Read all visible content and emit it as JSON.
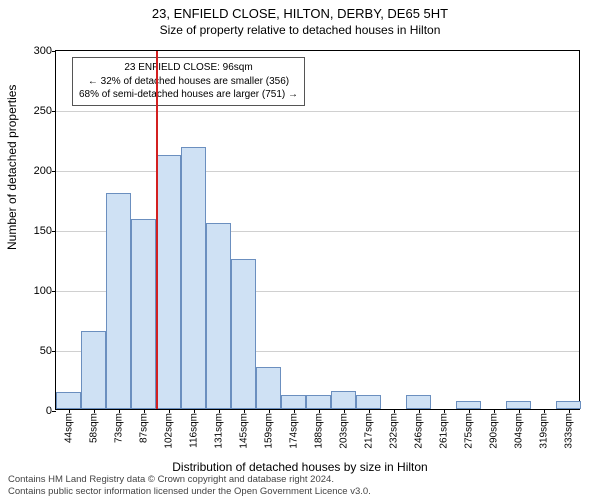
{
  "title": "23, ENFIELD CLOSE, HILTON, DERBY, DE65 5HT",
  "subtitle": "Size of property relative to detached houses in Hilton",
  "y_axis_title": "Number of detached properties",
  "x_axis_title": "Distribution of detached houses by size in Hilton",
  "chart": {
    "type": "histogram",
    "ylim": [
      0,
      300
    ],
    "yticks": [
      0,
      50,
      100,
      150,
      200,
      250,
      300
    ],
    "x_tick_labels": [
      "44sqm",
      "58sqm",
      "73sqm",
      "87sqm",
      "102sqm",
      "116sqm",
      "131sqm",
      "145sqm",
      "159sqm",
      "174sqm",
      "188sqm",
      "203sqm",
      "217sqm",
      "232sqm",
      "246sqm",
      "261sqm",
      "275sqm",
      "290sqm",
      "304sqm",
      "319sqm",
      "333sqm"
    ],
    "values": [
      14,
      65,
      180,
      158,
      212,
      218,
      155,
      125,
      35,
      12,
      12,
      15,
      12,
      0,
      12,
      0,
      7,
      0,
      7,
      0,
      7
    ],
    "bar_fill": "#cfe1f4",
    "bar_stroke": "#6b8fbf",
    "grid_color": "#d0d0d0",
    "background_color": "#ffffff",
    "marker_index": 3,
    "marker_color": "#d32020"
  },
  "annotation": {
    "line1": "23 ENFIELD CLOSE: 96sqm",
    "line2": "← 32% of detached houses are smaller (356)",
    "line3": "68% of semi-detached houses are larger (751) →"
  },
  "footer": {
    "line1": "Contains HM Land Registry data © Crown copyright and database right 2024.",
    "line2": "Contains public sector information licensed under the Open Government Licence v3.0."
  }
}
